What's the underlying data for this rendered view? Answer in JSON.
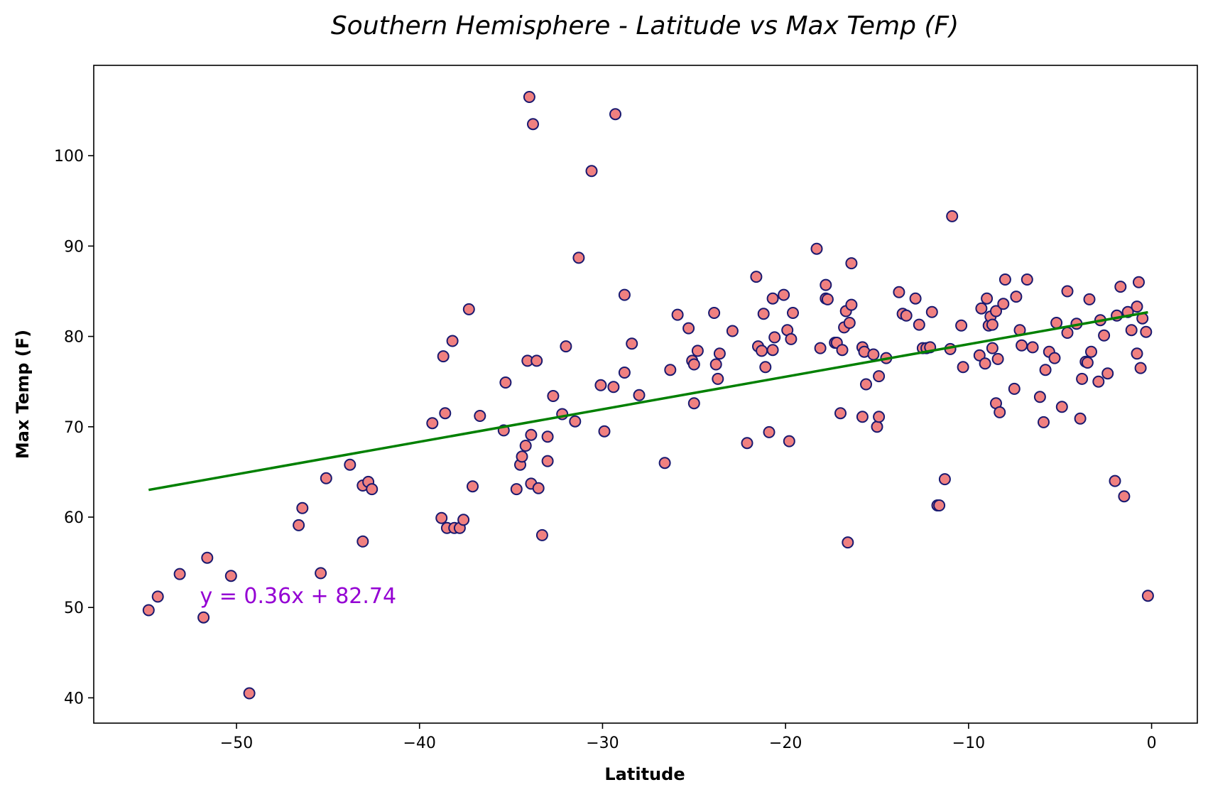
{
  "chart_data": {
    "type": "scatter",
    "title": "Southern Hemisphere - Latitude vs Max Temp (F)",
    "xlabel": "Latitude",
    "ylabel": "Max Temp (F)",
    "xlim": [
      -57.8,
      2.5
    ],
    "ylim": [
      37.2,
      110
    ],
    "x_ticks": [
      -50,
      -40,
      -30,
      -20,
      -10,
      0
    ],
    "x_tick_labels": [
      "−50",
      "−40",
      "−30",
      "−20",
      "−10",
      "0"
    ],
    "y_ticks": [
      40,
      50,
      60,
      70,
      80,
      90,
      100
    ],
    "y_tick_labels": [
      "40",
      "50",
      "60",
      "70",
      "80",
      "90",
      "100"
    ],
    "grid": false,
    "colors": {
      "marker_fill": "#f08080",
      "marker_edge": "#191970",
      "regression": "#008000",
      "equation": "#9400d3"
    },
    "regression": {
      "slope": 0.36,
      "intercept": 82.74,
      "x_range": [
        -54.8,
        -0.2
      ],
      "equation": "y = 0.36x + 82.74",
      "equation_at": [
        -52,
        50.5
      ]
    },
    "x": [
      -54.8,
      -54.3,
      -53.1,
      -51.8,
      -51.6,
      -50.3,
      -49.3,
      -46.6,
      -46.4,
      -45.4,
      -45.1,
      -43.8,
      -43.1,
      -43.1,
      -42.8,
      -42.6,
      -39.3,
      -38.8,
      -38.7,
      -38.6,
      -38.5,
      -38.2,
      -38.1,
      -37.8,
      -37.6,
      -37.3,
      -37.1,
      -36.7,
      -35.4,
      -35.3,
      -34.7,
      -34.5,
      -34.4,
      -34.2,
      -34.1,
      -34.0,
      -33.9,
      -33.9,
      -33.8,
      -33.6,
      -33.5,
      -33.3,
      -33.0,
      -33.0,
      -32.7,
      -32.2,
      -32.0,
      -31.5,
      -31.3,
      -30.6,
      -30.1,
      -29.9,
      -29.4,
      -29.3,
      -28.8,
      -28.8,
      -28.4,
      -28.0,
      -26.6,
      -26.3,
      -25.9,
      -25.3,
      -25.1,
      -25.0,
      -25.0,
      -24.8,
      -23.9,
      -23.8,
      -23.7,
      -23.6,
      -22.9,
      -22.1,
      -21.6,
      -21.5,
      -21.3,
      -21.2,
      -21.1,
      -20.9,
      -20.7,
      -20.7,
      -20.6,
      -20.1,
      -19.9,
      -19.8,
      -19.7,
      -19.6,
      -18.3,
      -18.1,
      -17.8,
      -17.8,
      -17.7,
      -17.3,
      -17.2,
      -17.0,
      -16.9,
      -16.8,
      -16.7,
      -16.6,
      -16.5,
      -16.4,
      -16.4,
      -15.8,
      -15.8,
      -15.7,
      -15.6,
      -15.2,
      -15.0,
      -14.9,
      -14.9,
      -14.5,
      -13.8,
      -13.6,
      -13.4,
      -12.9,
      -12.7,
      -12.5,
      -12.3,
      -12.1,
      -12.0,
      -11.7,
      -11.6,
      -11.3,
      -11.0,
      -10.9,
      -10.4,
      -10.3,
      -9.4,
      -9.3,
      -9.1,
      -9.0,
      -8.9,
      -8.8,
      -8.7,
      -8.7,
      -8.5,
      -8.5,
      -8.4,
      -8.3,
      -8.1,
      -8.0,
      -7.5,
      -7.4,
      -7.2,
      -7.1,
      -6.8,
      -6.5,
      -6.1,
      -5.9,
      -5.8,
      -5.6,
      -5.3,
      -5.2,
      -4.9,
      -4.6,
      -4.6,
      -4.1,
      -3.9,
      -3.8,
      -3.6,
      -3.5,
      -3.4,
      -3.3,
      -2.9,
      -2.8,
      -2.6,
      -2.4,
      -2.0,
      -1.9,
      -1.7,
      -1.5,
      -1.3,
      -1.1,
      -0.8,
      -0.8,
      -0.7,
      -0.6,
      -0.5,
      -0.3,
      -0.2
    ],
    "y": [
      49.7,
      51.2,
      53.7,
      48.9,
      55.5,
      53.5,
      40.5,
      59.1,
      61.0,
      53.8,
      64.3,
      65.8,
      57.3,
      63.5,
      63.9,
      63.1,
      70.4,
      59.9,
      77.8,
      71.5,
      58.8,
      79.5,
      58.8,
      58.8,
      59.7,
      83.0,
      63.4,
      71.2,
      69.6,
      74.9,
      63.1,
      65.8,
      66.7,
      67.9,
      77.3,
      106.5,
      63.7,
      69.1,
      103.5,
      77.3,
      63.2,
      58.0,
      66.2,
      68.9,
      73.4,
      71.4,
      78.9,
      70.6,
      88.7,
      98.3,
      74.6,
      69.5,
      74.4,
      104.6,
      84.6,
      76.0,
      79.2,
      73.5,
      66.0,
      76.3,
      82.4,
      80.9,
      77.3,
      76.9,
      72.6,
      78.4,
      82.6,
      76.9,
      75.3,
      78.1,
      80.6,
      68.2,
      86.6,
      78.9,
      78.4,
      82.5,
      76.6,
      69.4,
      78.5,
      84.2,
      79.9,
      84.6,
      80.7,
      68.4,
      79.7,
      82.6,
      89.7,
      78.7,
      84.2,
      85.7,
      84.1,
      79.3,
      79.3,
      71.5,
      78.5,
      81.0,
      82.8,
      57.2,
      81.5,
      83.5,
      88.1,
      71.1,
      78.8,
      78.3,
      74.7,
      78.0,
      70.0,
      71.1,
      75.6,
      77.6,
      84.9,
      82.5,
      82.3,
      84.2,
      81.3,
      78.7,
      78.7,
      78.8,
      82.7,
      61.3,
      61.3,
      64.2,
      78.6,
      93.3,
      81.2,
      76.6,
      77.9,
      83.1,
      77.0,
      84.2,
      81.2,
      82.2,
      78.7,
      81.3,
      72.6,
      82.8,
      77.5,
      71.6,
      83.6,
      86.3,
      74.2,
      84.4,
      80.7,
      79.0,
      86.3,
      78.8,
      73.3,
      70.5,
      76.3,
      78.3,
      77.6,
      81.5,
      72.2,
      80.4,
      85.0,
      81.4,
      70.9,
      75.3,
      77.2,
      77.1,
      84.1,
      78.3,
      75.0,
      81.8,
      80.1,
      75.9,
      64.0,
      82.3,
      85.5,
      62.3,
      82.7,
      80.7,
      78.1,
      83.3,
      86.0,
      76.5,
      82.0,
      80.5,
      51.3
    ]
  }
}
